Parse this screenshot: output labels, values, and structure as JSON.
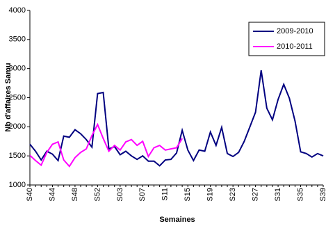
{
  "chart_data": {
    "type": "line",
    "x_label": "Semaines",
    "y_label": "Nb d'affaires Samu",
    "categories": [
      "S40",
      null,
      null,
      null,
      "S44",
      null,
      null,
      null,
      "S48",
      null,
      null,
      null,
      "S52",
      null,
      null,
      null,
      "S03",
      null,
      null,
      null,
      "S07",
      null,
      null,
      null,
      "S11",
      null,
      null,
      null,
      "S15",
      null,
      null,
      null,
      "S19",
      null,
      null,
      null,
      "S23",
      null,
      null,
      null,
      "S27",
      null,
      null,
      null,
      "S31",
      null,
      null,
      null,
      "S35",
      null,
      null,
      null,
      "S39"
    ],
    "series": [
      {
        "name": "2009-2010",
        "color": "#000080",
        "values": [
          1700,
          1580,
          1430,
          1580,
          1530,
          1420,
          1840,
          1820,
          1950,
          1880,
          1780,
          1650,
          2570,
          2590,
          1620,
          1660,
          1520,
          1580,
          1500,
          1440,
          1500,
          1410,
          1410,
          1330,
          1430,
          1440,
          1550,
          1940,
          1600,
          1420,
          1600,
          1580,
          1910,
          1680,
          1990,
          1540,
          1490,
          1560,
          1750,
          2000,
          2250,
          2970,
          2320,
          2120,
          2470,
          2730,
          2490,
          2100,
          1570,
          1540,
          1480,
          1540,
          1500
        ]
      },
      {
        "name": "2010-2011",
        "color": "#ff00ff",
        "values": [
          1510,
          1420,
          1340,
          1560,
          1700,
          1740,
          1430,
          1320,
          1470,
          1560,
          1620,
          1850,
          2040,
          1800,
          1580,
          1680,
          1600,
          1740,
          1780,
          1680,
          1750,
          1490,
          1640,
          1680,
          1600,
          1620,
          1640,
          1800,
          null,
          null,
          null,
          null,
          null,
          null,
          null,
          null,
          null,
          null,
          null,
          null,
          null,
          null,
          null,
          null,
          null,
          null,
          null,
          null,
          null,
          null,
          null,
          null,
          null
        ]
      }
    ],
    "ylim": [
      1000,
      4000
    ],
    "yticks": [
      1000,
      1500,
      2000,
      2500,
      3000,
      3500,
      4000
    ],
    "grid": false,
    "legend": "upper right"
  }
}
